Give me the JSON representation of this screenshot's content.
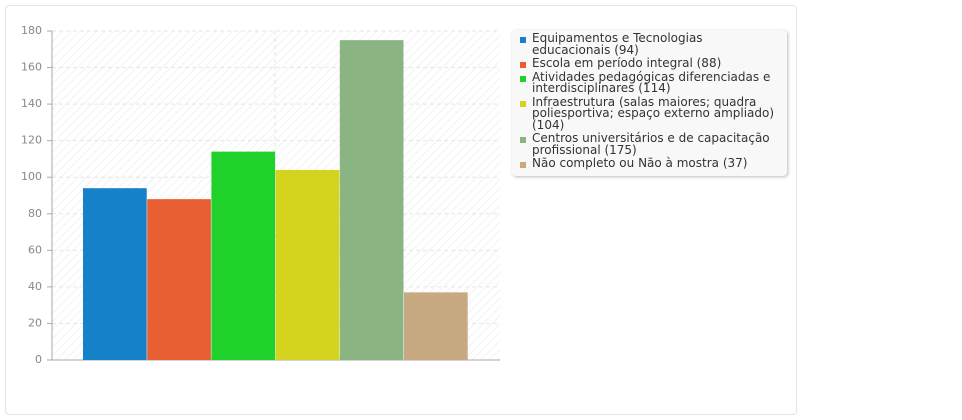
{
  "chart_data": {
    "type": "bar",
    "categories": [
      "Equipamentos e Tecnologias educacionais (94)",
      "Escola em período integral (88)",
      "Atividades pedagógicas diferenciadas e interdisciplinares (114)",
      "Infraestrutura (salas maiores; quadra poliesportiva; espaço externo ampliado) (104)",
      "Centros universitários e de capacitação profissional (175)",
      "Não completo ou Não à mostra (37)"
    ],
    "values": [
      94,
      88,
      114,
      104,
      175,
      37
    ],
    "colors": [
      "#1581c9",
      "#e95f34",
      "#21d12b",
      "#d4d41e",
      "#8ab583",
      "#c8aa82"
    ],
    "ylim": [
      0,
      180
    ],
    "yticks": [
      0,
      20,
      40,
      60,
      80,
      100,
      120,
      140,
      160,
      180
    ],
    "grid": true
  }
}
